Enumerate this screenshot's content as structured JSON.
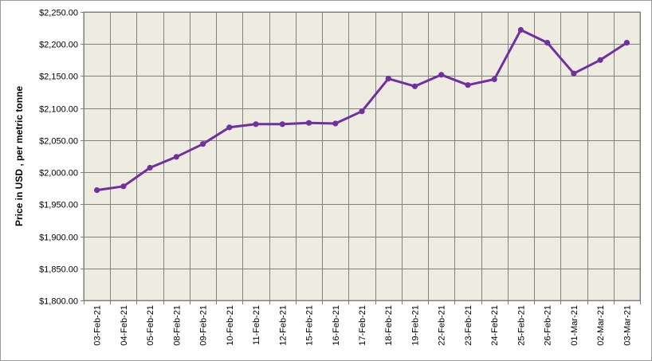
{
  "chart_data": {
    "type": "line",
    "title": "",
    "xlabel": "",
    "ylabel": "Price in USD , per metric tonne",
    "ylim": [
      1800,
      2250
    ],
    "ytick_step": 50,
    "ytick_labels": [
      "$1,800.00",
      "$1,850.00",
      "$1,900.00",
      "$1,950.00",
      "$2,000.00",
      "$2,050.00",
      "$2,100.00",
      "$2,150.00",
      "$2,200.00",
      "$2,250.00"
    ],
    "grid": true,
    "legend": "none",
    "categories": [
      "03-Feb-21",
      "04-Feb-21",
      "05-Feb-21",
      "08-Feb-21",
      "09-Feb-21",
      "10-Feb-21",
      "11-Feb-21",
      "12-Feb-21",
      "15-Feb-21",
      "16-Feb-21",
      "17-Feb-21",
      "18-Feb-21",
      "19-Feb-21",
      "22-Feb-21",
      "23-Feb-21",
      "24-Feb-21",
      "25-Feb-21",
      "26-Feb-21",
      "01-Mar-21",
      "02-Mar-21",
      "03-Mar-21"
    ],
    "series": [
      {
        "values": [
          1972,
          1978,
          2007,
          2024,
          2044,
          2070,
          2075,
          2075,
          2077,
          2076,
          2095,
          2146,
          2134,
          2152,
          2136,
          2145,
          2222,
          2202,
          2154,
          2175,
          2202
        ]
      }
    ],
    "colors": {
      "line": "#7030A0",
      "plot_background": "#EEECE1",
      "grid": "#808080"
    }
  }
}
